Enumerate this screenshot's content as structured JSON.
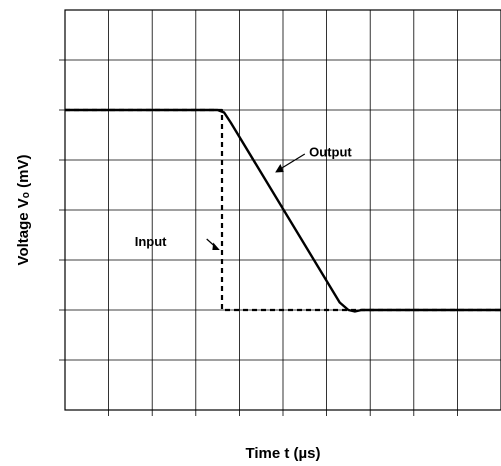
{
  "chart_data": {
    "type": "line",
    "xlabel": "Time t (µs)",
    "ylabel": "Voltage Vₒ (mV)",
    "xlim": [
      0,
      10
    ],
    "ylim": [
      0,
      8
    ],
    "grid": true,
    "show_tick_labels": false,
    "series": [
      {
        "name": "Input",
        "style": "dashed",
        "x": [
          0,
          3.6,
          3.6,
          10
        ],
        "y": [
          6,
          6,
          2,
          2
        ]
      },
      {
        "name": "Output",
        "style": "solid",
        "x": [
          0,
          3.5,
          3.65,
          3.8,
          6.3,
          6.5,
          6.65,
          6.8,
          10
        ],
        "y": [
          6,
          6,
          5.95,
          5.75,
          2.15,
          2.0,
          1.97,
          2.0,
          2.0
        ]
      }
    ],
    "annotations": [
      {
        "text": "Output",
        "target_series": "Output"
      },
      {
        "text": "Input",
        "target_series": "Input"
      }
    ]
  }
}
